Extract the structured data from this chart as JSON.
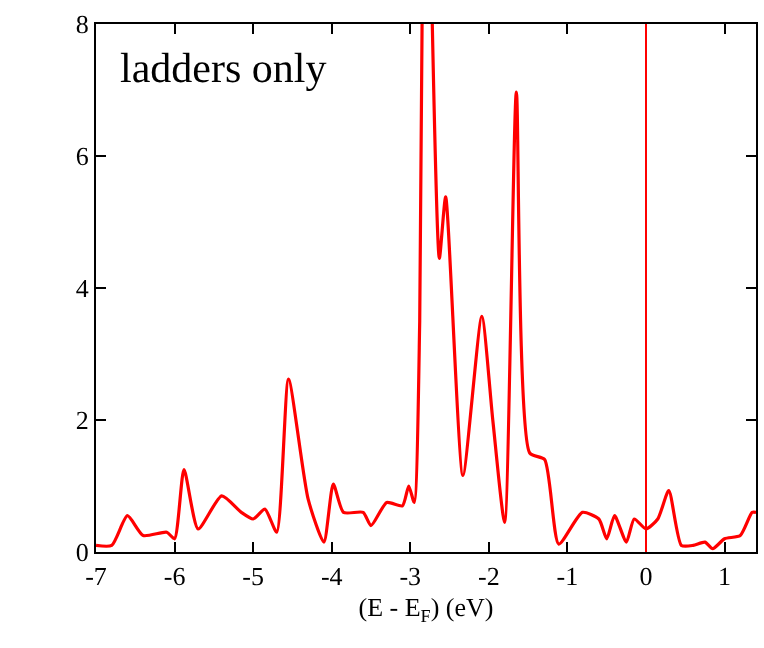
{
  "chart_data": {
    "type": "line",
    "xlabel": "(E - E$_{F}$) (eV)",
    "annotations": [
      "ladders only"
    ],
    "x": [
      -7,
      -6.8,
      -6.6,
      -6.4,
      -6.1,
      -6.0,
      -5.88,
      -5.7,
      -5.4,
      -5.15,
      -5.0,
      -4.85,
      -4.7,
      -4.55,
      -4.3,
      -4.1,
      -3.98,
      -3.85,
      -3.6,
      -3.5,
      -3.3,
      -3.1,
      -3.02,
      -2.95,
      -2.88,
      -2.85,
      -2.8,
      -2.72,
      -2.63,
      -2.55,
      -2.33,
      -2.09,
      -1.95,
      -1.8,
      -1.65,
      -1.48,
      -1.29,
      -1.11,
      -0.81,
      -0.6,
      -0.5,
      -0.4,
      -0.25,
      -0.15,
      0.0,
      0.15,
      0.29,
      0.45,
      0.6,
      0.75,
      0.85,
      1.0,
      1.2,
      1.35,
      1.4
    ],
    "series": [
      {
        "color": "#ff0000",
        "values": [
          0.1,
          0.1,
          0.55,
          0.25,
          0.3,
          0.2,
          1.25,
          0.35,
          0.85,
          0.6,
          0.5,
          0.65,
          0.3,
          2.62,
          0.8,
          0.15,
          1.03,
          0.6,
          0.6,
          0.4,
          0.75,
          0.7,
          1.0,
          0.75,
          3.5,
          8,
          null,
          8,
          4.45,
          5.38,
          1.16,
          3.57,
          2.0,
          0.45,
          6.97,
          1.5,
          1.4,
          0.12,
          0.6,
          0.5,
          0.2,
          0.55,
          0.15,
          0.5,
          0.35,
          0.5,
          0.93,
          0.1,
          0.1,
          0.15,
          0.05,
          0.2,
          0.25,
          0.6,
          0.6
        ]
      }
    ],
    "xlim": [
      -7,
      1.4
    ],
    "ylim": [
      0,
      8
    ],
    "xticks": [
      -7,
      -6,
      -5,
      -4,
      -3,
      -2,
      -1,
      0,
      1
    ],
    "yticks": [
      0,
      2,
      4,
      6,
      8
    ],
    "ref_lines": [
      {
        "axis": "x",
        "value": 0,
        "color": "#ff0000"
      }
    ]
  }
}
